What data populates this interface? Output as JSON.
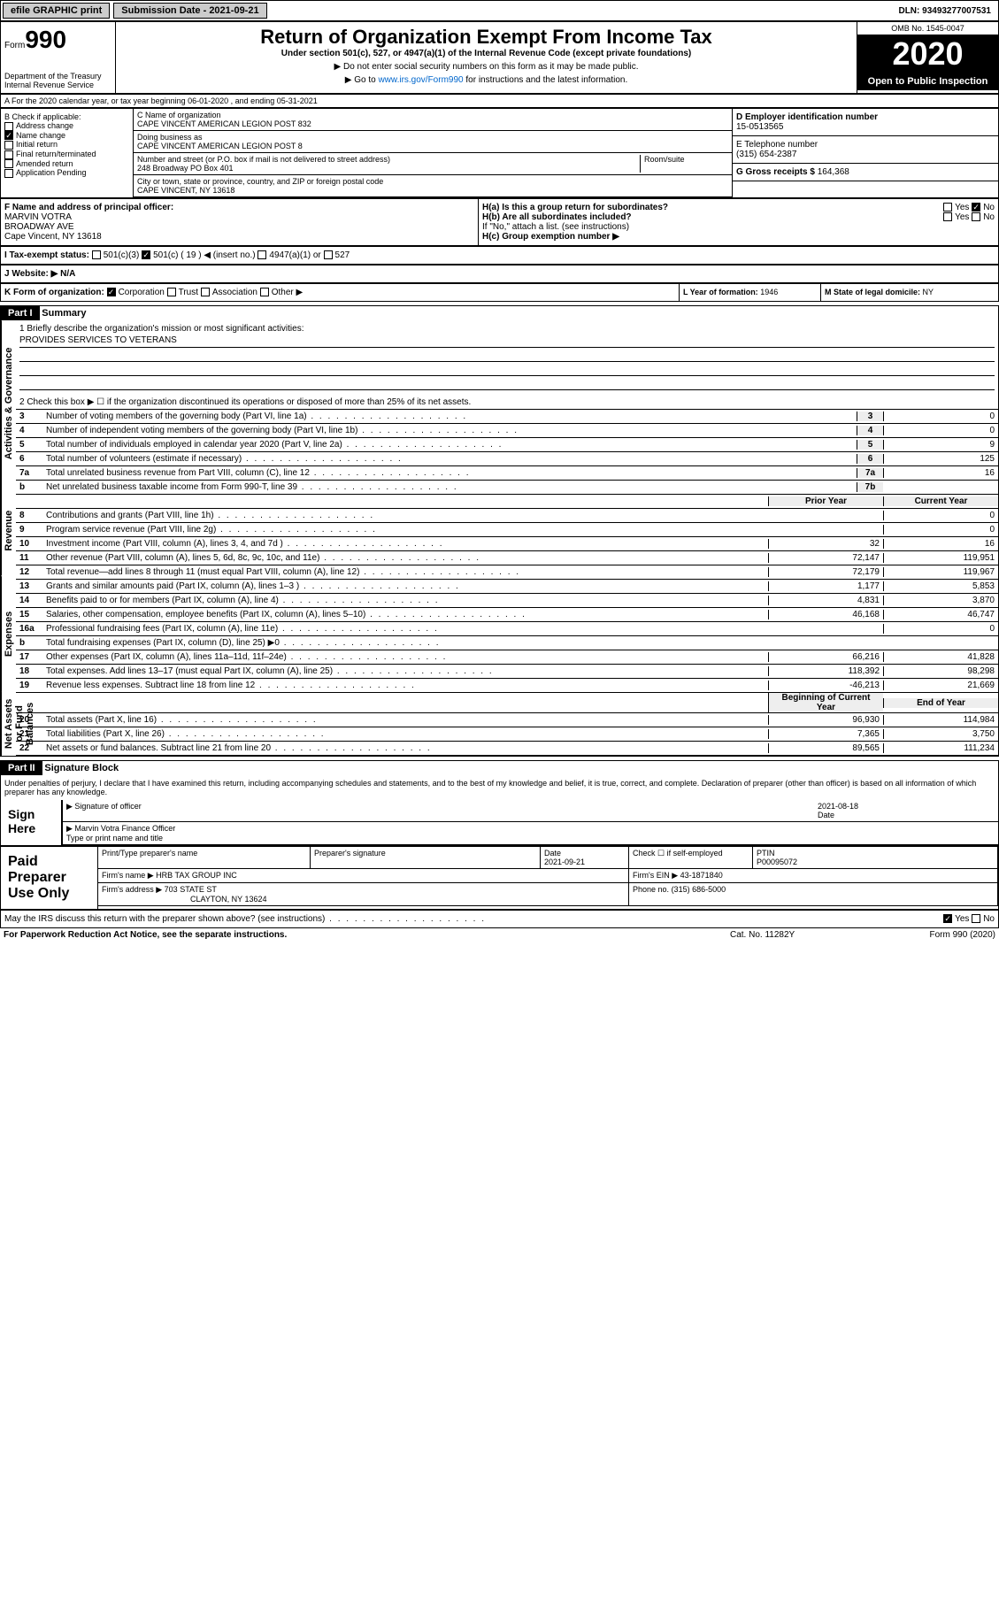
{
  "top": {
    "efile": "efile GRAPHIC print",
    "submission": "Submission Date - 2021-09-21",
    "dln": "DLN: 93493277007531"
  },
  "header": {
    "form_prefix": "Form",
    "form_num": "990",
    "dept": "Department of the Treasury\nInternal Revenue Service",
    "title": "Return of Organization Exempt From Income Tax",
    "subtitle": "Under section 501(c), 527, or 4947(a)(1) of the Internal Revenue Code (except private foundations)",
    "line1": "▶ Do not enter social security numbers on this form as it may be made public.",
    "line2_pre": "▶ Go to ",
    "line2_link": "www.irs.gov/Form990",
    "line2_post": " for instructions and the latest information.",
    "omb": "OMB No. 1545-0047",
    "year": "2020",
    "open": "Open to Public Inspection"
  },
  "sectionA": "A For the 2020 calendar year, or tax year beginning 06-01-2020    , and ending 05-31-2021",
  "colB": {
    "label": "B Check if applicable:",
    "items": [
      "Address change",
      "Name change",
      "Initial return",
      "Final return/terminated",
      "Amended return",
      "Application Pending"
    ],
    "checked_idx": 1
  },
  "colC": {
    "name_label": "C Name of organization",
    "name": "CAPE VINCENT AMERICAN LEGION POST 832",
    "dba_label": "Doing business as",
    "dba": "CAPE VINCENT AMERICAN LEGION POST 8",
    "addr_label": "Number and street (or P.O. box if mail is not delivered to street address)",
    "addr": "248 Broadway PO Box 401",
    "room_label": "Room/suite",
    "city_label": "City or town, state or province, country, and ZIP or foreign postal code",
    "city": "CAPE VINCENT, NY  13618"
  },
  "colD": {
    "ein_label": "D Employer identification number",
    "ein": "15-0513565",
    "phone_label": "E Telephone number",
    "phone": "(315) 654-2387",
    "gross_label": "G Gross receipts $",
    "gross": "164,368"
  },
  "rowF": {
    "label": "F  Name and address of principal officer:",
    "name": "MARVIN VOTRA",
    "addr1": "BROADWAY AVE",
    "addr2": "Cape Vincent, NY  13618"
  },
  "rowH": {
    "ha": "H(a)  Is this a group return for subordinates?",
    "ha_yes": "Yes",
    "ha_no": "No",
    "hb": "H(b)  Are all subordinates included?",
    "hb_yes": "Yes",
    "hb_no": "No",
    "hb_note": "If \"No,\" attach a list. (see instructions)",
    "hc": "H(c)  Group exemption number ▶"
  },
  "rowI": {
    "label": "I    Tax-exempt status:",
    "opts": [
      "501(c)(3)",
      "501(c) ( 19 ) ◀ (insert no.)",
      "4947(a)(1) or",
      "527"
    ],
    "checked_idx": 1
  },
  "rowJ": {
    "label": "J    Website: ▶",
    "val": "N/A"
  },
  "rowK": {
    "label": "K Form of organization:",
    "opts": [
      "Corporation",
      "Trust",
      "Association",
      "Other ▶"
    ],
    "checked_idx": 0
  },
  "rowL": {
    "label": "L Year of formation:",
    "val": "1946"
  },
  "rowM": {
    "label": "M State of legal domicile:",
    "val": "NY"
  },
  "part1": {
    "hdr": "Part I",
    "title": "Summary",
    "vert_labels": [
      "Activities & Governance",
      "Revenue",
      "Expenses",
      "Net Assets or Fund Balances"
    ],
    "line1_label": "1  Briefly describe the organization's mission or most significant activities:",
    "line1_val": "PROVIDES SERVICES TO VETERANS",
    "line2": "2    Check this box ▶ ☐  if the organization discontinued its operations or disposed of more than 25% of its net assets.",
    "cols": {
      "prior": "Prior Year",
      "current": "Current Year",
      "begin": "Beginning of Current Year",
      "end": "End of Year"
    },
    "rows_gov": [
      {
        "n": "3",
        "t": "Number of voting members of the governing body (Part VI, line 1a)",
        "box": "3",
        "v": "0"
      },
      {
        "n": "4",
        "t": "Number of independent voting members of the governing body (Part VI, line 1b)",
        "box": "4",
        "v": "0"
      },
      {
        "n": "5",
        "t": "Total number of individuals employed in calendar year 2020 (Part V, line 2a)",
        "box": "5",
        "v": "9"
      },
      {
        "n": "6",
        "t": "Total number of volunteers (estimate if necessary)",
        "box": "6",
        "v": "125"
      },
      {
        "n": "7a",
        "t": "Total unrelated business revenue from Part VIII, column (C), line 12",
        "box": "7a",
        "v": "16"
      },
      {
        "n": "b",
        "t": "Net unrelated business taxable income from Form 990-T, line 39",
        "box": "7b",
        "v": ""
      }
    ],
    "rows_rev": [
      {
        "n": "8",
        "t": "Contributions and grants (Part VIII, line 1h)",
        "p": "",
        "c": "0"
      },
      {
        "n": "9",
        "t": "Program service revenue (Part VIII, line 2g)",
        "p": "",
        "c": "0"
      },
      {
        "n": "10",
        "t": "Investment income (Part VIII, column (A), lines 3, 4, and 7d )",
        "p": "32",
        "c": "16"
      },
      {
        "n": "11",
        "t": "Other revenue (Part VIII, column (A), lines 5, 6d, 8c, 9c, 10c, and 11e)",
        "p": "72,147",
        "c": "119,951"
      },
      {
        "n": "12",
        "t": "Total revenue—add lines 8 through 11 (must equal Part VIII, column (A), line 12)",
        "p": "72,179",
        "c": "119,967"
      }
    ],
    "rows_exp": [
      {
        "n": "13",
        "t": "Grants and similar amounts paid (Part IX, column (A), lines 1–3 )",
        "p": "1,177",
        "c": "5,853"
      },
      {
        "n": "14",
        "t": "Benefits paid to or for members (Part IX, column (A), line 4)",
        "p": "4,831",
        "c": "3,870"
      },
      {
        "n": "15",
        "t": "Salaries, other compensation, employee benefits (Part IX, column (A), lines 5–10)",
        "p": "46,168",
        "c": "46,747"
      },
      {
        "n": "16a",
        "t": "Professional fundraising fees (Part IX, column (A), line 11e)",
        "p": "",
        "c": "0"
      },
      {
        "n": "b",
        "t": "Total fundraising expenses (Part IX, column (D), line 25) ▶0",
        "p": "",
        "c": ""
      },
      {
        "n": "17",
        "t": "Other expenses (Part IX, column (A), lines 11a–11d, 11f–24e)",
        "p": "66,216",
        "c": "41,828"
      },
      {
        "n": "18",
        "t": "Total expenses. Add lines 13–17 (must equal Part IX, column (A), line 25)",
        "p": "118,392",
        "c": "98,298"
      },
      {
        "n": "19",
        "t": "Revenue less expenses. Subtract line 18 from line 12",
        "p": "-46,213",
        "c": "21,669"
      }
    ],
    "rows_net": [
      {
        "n": "20",
        "t": "Total assets (Part X, line 16)",
        "p": "96,930",
        "c": "114,984"
      },
      {
        "n": "21",
        "t": "Total liabilities (Part X, line 26)",
        "p": "7,365",
        "c": "3,750"
      },
      {
        "n": "22",
        "t": "Net assets or fund balances. Subtract line 21 from line 20",
        "p": "89,565",
        "c": "111,234"
      }
    ]
  },
  "part2": {
    "hdr": "Part II",
    "title": "Signature Block",
    "penalty": "Under penalties of perjury, I declare that I have examined this return, including accompanying schedules and statements, and to the best of my knowledge and belief, it is true, correct, and complete. Declaration of preparer (other than officer) is based on all information of which preparer has any knowledge.",
    "sign_here": "Sign Here",
    "sig_officer": "Signature of officer",
    "sig_date": "2021-08-18",
    "date_label": "Date",
    "officer_name": "Marvin Votra  Finance Officer",
    "type_label": "Type or print name and title",
    "paid_label": "Paid Preparer Use Only",
    "prep_name_label": "Print/Type preparer's name",
    "prep_sig_label": "Preparer's signature",
    "prep_date_label": "Date",
    "prep_date": "2021-09-21",
    "check_self": "Check ☐ if self-employed",
    "ptin_label": "PTIN",
    "ptin": "P00095072",
    "firm_name_label": "Firm's name    ▶",
    "firm_name": "HRB TAX GROUP INC",
    "firm_ein_label": "Firm's EIN ▶",
    "firm_ein": "43-1871840",
    "firm_addr_label": "Firm's address ▶",
    "firm_addr": "703 STATE ST",
    "firm_city": "CLAYTON, NY  13624",
    "firm_phone_label": "Phone no.",
    "firm_phone": "(315) 686-5000",
    "discuss": "May the IRS discuss this return with the preparer shown above? (see instructions)",
    "discuss_yes": "Yes",
    "discuss_no": "No"
  },
  "footer": {
    "left": "For Paperwork Reduction Act Notice, see the separate instructions.",
    "mid": "Cat. No. 11282Y",
    "right": "Form 990 (2020)"
  }
}
